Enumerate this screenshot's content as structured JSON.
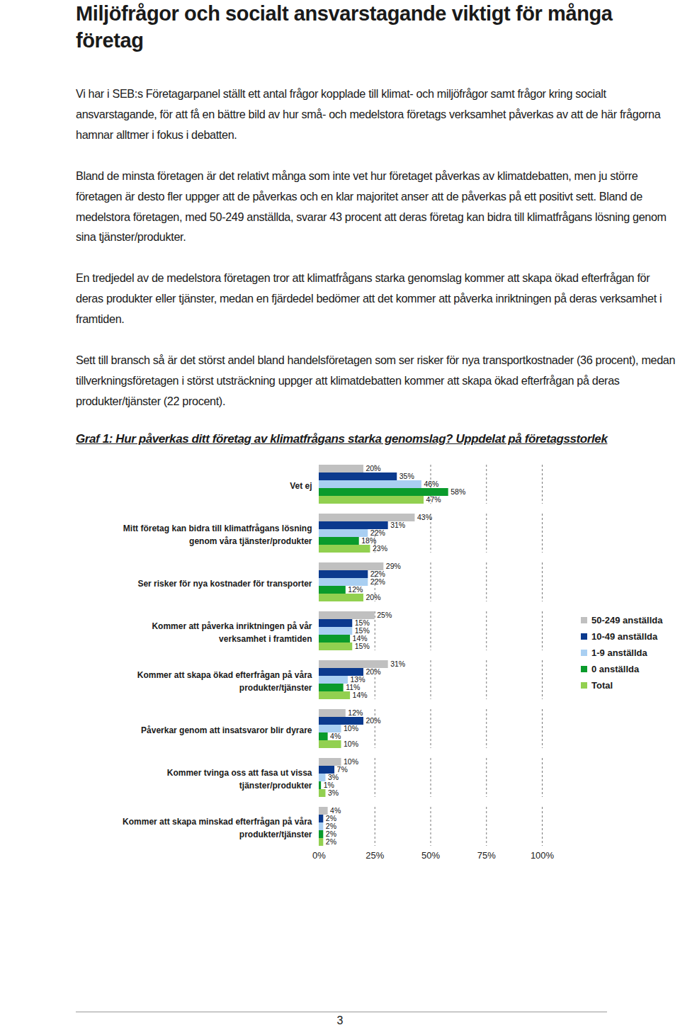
{
  "title": "Miljöfrågor och socialt ansvarstagande viktigt för många företag",
  "paragraphs": [
    "Vi har i SEB:s Företagarpanel ställt ett antal frågor kopplade till klimat- och miljöfrågor samt frågor kring socialt ansvarstagande, för att få en bättre bild av hur små- och medelstora företags verksamhet påverkas av att de här frågorna hamnar alltmer i fokus i debatten.",
    "Bland de minsta företagen är det relativt många som inte vet hur företaget påverkas av klimatdebatten, men ju större företagen är desto fler uppger att de påverkas och en klar majoritet anser att de påverkas på ett positivt sett. Bland de medelstora företagen, med 50-249 anställda, svarar 43 procent att deras företag kan bidra till klimatfrågans lösning genom sina tjänster/produkter.",
    "En tredjedel av de medelstora företagen tror att klimatfrågans starka genomslag kommer att skapa ökad efterfrågan för deras produkter eller tjänster, medan en fjärdedel bedömer att det kommer att påverka inriktningen på deras verksamhet i framtiden.",
    "Sett till bransch så är det störst andel bland handelsföretagen som ser risker för nya transportkostnader (36 procent), medan tillverkningsföretagen i störst utsträckning uppger att klimatdebatten kommer att skapa ökad efterfrågan på deras produkter/tjänster (22 procent)."
  ],
  "figure_title": "Graf 1: Hur påverkas ditt företag av klimatfrågans starka genomslag? Uppdelat på företagsstorlek",
  "page_number": "3",
  "chart_data": {
    "type": "bar",
    "orientation": "horizontal",
    "grid": true,
    "legend": "right",
    "data_labels": true,
    "categories": [
      "Vet ej",
      "Mitt företag kan bidra till klimatfrågans lösning\ngenom våra tjänster/produkter",
      "Ser risker för nya kostnader för transporter",
      "Kommer att påverka inriktningen på vår\nverksamhet i framtiden",
      "Kommer att skapa ökad efterfrågan på våra\nprodukter/tjänster",
      "Påverkar genom att insatsvaror blir dyrare",
      "Kommer tvinga oss att fasa ut vissa\ntjänster/produkter",
      "Kommer att skapa minskad efterfrågan på våra\nprodukter/tjänster"
    ],
    "series": [
      {
        "name": "50-249 anställda",
        "color": "#c0c0c0",
        "values": [
          20,
          43,
          29,
          25,
          31,
          12,
          10,
          4
        ],
        "value_labels": [
          "20%",
          "43%",
          "29%",
          "25%",
          "31%",
          "12%",
          "10%",
          "4%"
        ]
      },
      {
        "name": "10-49 anställda",
        "color": "#0b3a8e",
        "values": [
          35,
          31,
          22,
          15,
          20,
          20,
          7,
          2
        ],
        "value_labels": [
          "35%",
          "31%",
          "22%",
          "15%",
          "20%",
          "20%",
          "7%",
          "2%"
        ]
      },
      {
        "name": "1-9 anställda",
        "color": "#a9cff2",
        "values": [
          46,
          22,
          22,
          15,
          13,
          10,
          3,
          2
        ],
        "value_labels": [
          "46%",
          "22%",
          "22%",
          "15%",
          "13%",
          "10%",
          "3%",
          "2%"
        ]
      },
      {
        "name": "0 anställda",
        "color": "#0a9b2c",
        "values": [
          58,
          18,
          12,
          14,
          11,
          4,
          1,
          2
        ],
        "value_labels": [
          "58%",
          "18%",
          "12%",
          "14%",
          "11%",
          "4%",
          "1%",
          "2%"
        ]
      },
      {
        "name": "Total",
        "color": "#92d050",
        "values": [
          47,
          23,
          20,
          15,
          14,
          10,
          3,
          2
        ],
        "value_labels": [
          "47%",
          "23%",
          "20%",
          "15%",
          "14%",
          "10%",
          "3%",
          "2%"
        ]
      }
    ],
    "xlim": [
      0,
      100
    ],
    "xticks": [
      {
        "value": 0,
        "label": "0%"
      },
      {
        "value": 25,
        "label": "25%"
      },
      {
        "value": 50,
        "label": "50%"
      },
      {
        "value": 75,
        "label": "75%"
      },
      {
        "value": 100,
        "label": "100%"
      }
    ]
  }
}
